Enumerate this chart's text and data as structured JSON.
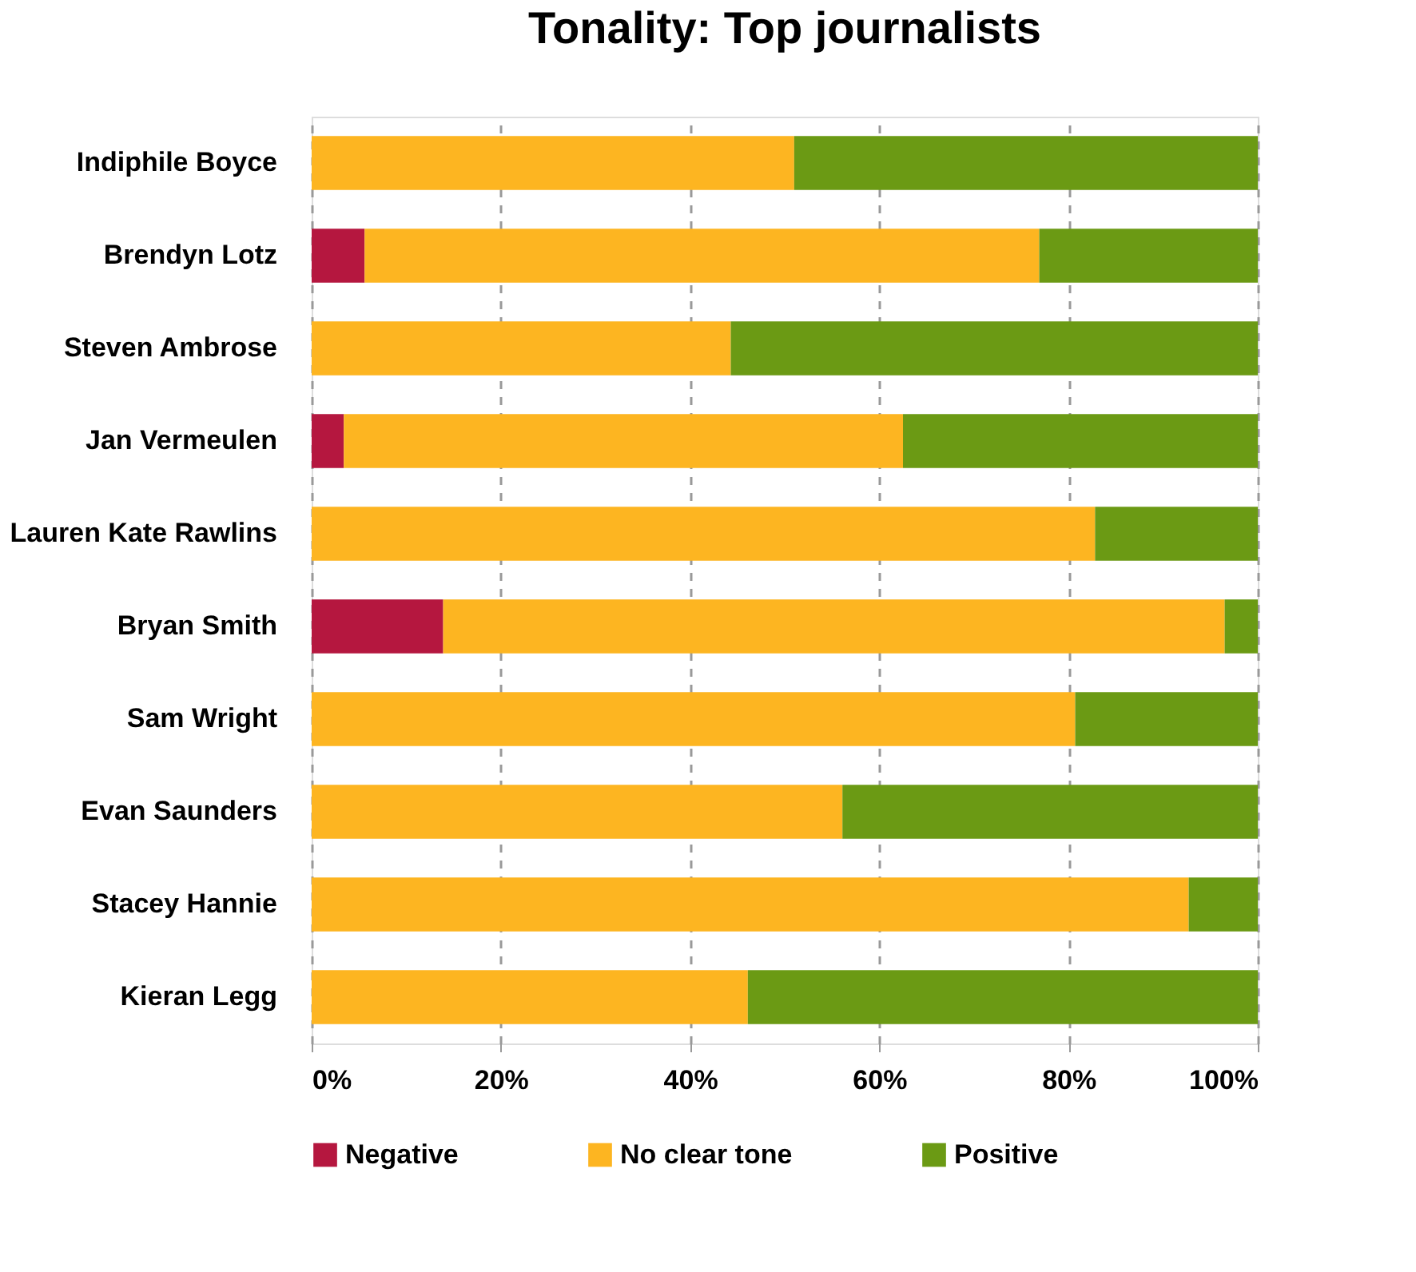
{
  "chart_data": {
    "type": "bar",
    "orientation": "horizontal",
    "stacked": true,
    "title": "Tonality: Top journalists",
    "categories": [
      "Indiphile Boyce",
      "Brendyn Lotz",
      "Steven Ambrose",
      "Jan Vermeulen",
      "Lauren Kate Rawlins",
      "Bryan Smith",
      "Sam Wright",
      "Evan Saunders",
      "Stacey Hannie",
      "Kieran Legg"
    ],
    "series": [
      {
        "name": "Negative",
        "color": "#b5173f",
        "values": [
          0,
          5.6,
          0,
          3.4,
          0,
          13.9,
          0,
          0,
          0,
          0
        ]
      },
      {
        "name": "No clear tone",
        "color": "#fdb521",
        "values": [
          51.0,
          71.3,
          44.3,
          59.1,
          82.8,
          82.6,
          80.7,
          56.1,
          92.7,
          46.1
        ]
      },
      {
        "name": "Positive",
        "color": "#6b9a14",
        "values": [
          49.0,
          23.1,
          55.7,
          37.5,
          17.2,
          3.5,
          19.3,
          43.9,
          7.3,
          53.9
        ]
      }
    ],
    "xlim": [
      0,
      100
    ],
    "xticks": [
      {
        "value": 0,
        "label": "0%"
      },
      {
        "value": 20,
        "label": "20%"
      },
      {
        "value": 40,
        "label": "40%"
      },
      {
        "value": 60,
        "label": "60%"
      },
      {
        "value": 80,
        "label": "80%"
      },
      {
        "value": 100,
        "label": "100%"
      }
    ],
    "grid": "x",
    "legend": "bottom"
  }
}
